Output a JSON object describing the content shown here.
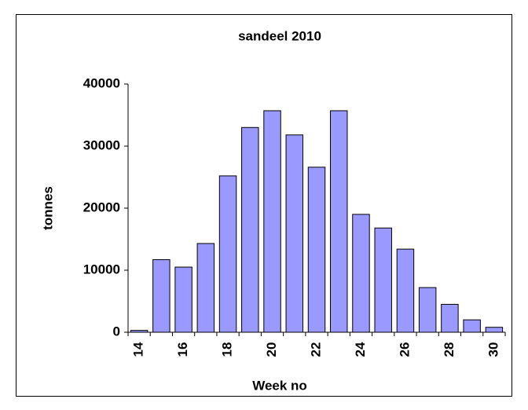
{
  "chart_data": {
    "type": "bar",
    "title": "sandeel 2010",
    "x_label": "Week no",
    "y_label": "tonnes",
    "categories": [
      "14",
      null,
      "16",
      null,
      "18",
      null,
      "20",
      null,
      "22",
      null,
      "24",
      null,
      "26",
      null,
      "28",
      null,
      "30"
    ],
    "values": [
      300,
      11700,
      10500,
      14300,
      25200,
      33000,
      35700,
      31800,
      26600,
      35700,
      19000,
      16800,
      13400,
      7200,
      4500,
      2000,
      800
    ],
    "color": "#9999ff",
    "ylim": [
      0,
      40000
    ],
    "yticks": [
      0,
      10000,
      20000,
      30000,
      40000
    ],
    "grid": false
  }
}
